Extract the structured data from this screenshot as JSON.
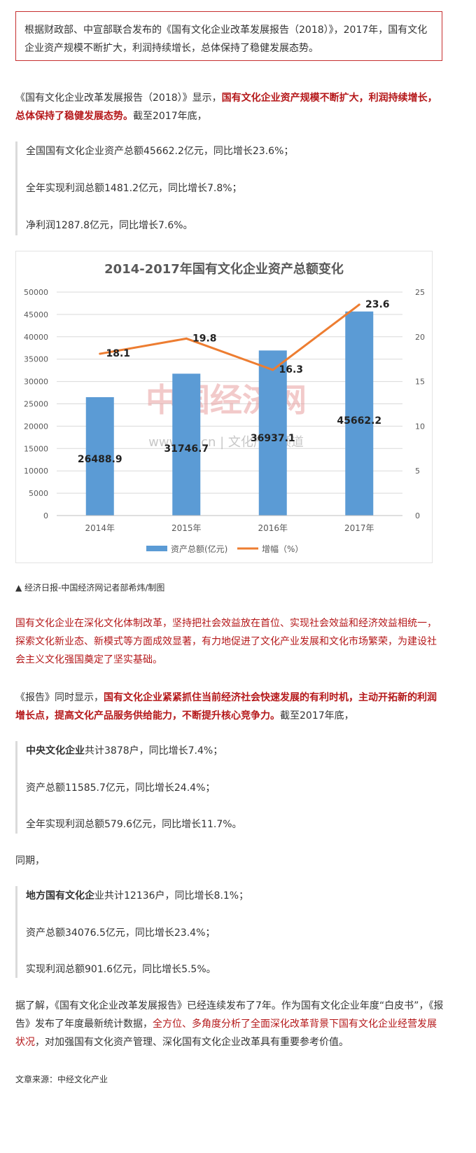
{
  "intro": {
    "text": "根据财政部、中宣部联合发布的《国有文化企业改革发展报告（2018）》，2017年，国有文化企业资产规模不断扩大，利润持续增长，总体保持了稳健发展态势。"
  },
  "p1": {
    "prefix": "《国有文化企业改革发展报告（2018）》显示，",
    "highlight": "国有文化企业资产规模不断扩大，利润持续增长，总体保持了稳健发展态势。",
    "suffix": "截至2017年底，"
  },
  "quote1": {
    "items": [
      "全国国有文化企业资产总额45662.2亿元，同比增长23.6%；",
      "全年实现利润总额1481.2亿元，同比增长7.8%；",
      "净利润1287.8亿元，同比增长7.6%。"
    ]
  },
  "chart_data": {
    "type": "bar",
    "title": "2014-2017年国有文化企业资产总额变化",
    "categories": [
      "2014年",
      "2015年",
      "2016年",
      "2017年"
    ],
    "series": [
      {
        "name": "资产总额(亿元)",
        "kind": "bar",
        "axis": "left",
        "values": [
          26488.9,
          31746.7,
          36937.1,
          45662.2
        ],
        "color": "#5b9bd5"
      },
      {
        "name": "增幅（%）",
        "kind": "line",
        "axis": "right",
        "values": [
          18.1,
          19.8,
          16.3,
          23.6
        ],
        "color": "#ed7d31"
      }
    ],
    "bar_labels": [
      "26488.9",
      "31746.7",
      "36937.1",
      "45662.2"
    ],
    "line_labels": [
      "18.1",
      "19.8",
      "16.3",
      "23.6"
    ],
    "ylim_left": [
      0,
      50000
    ],
    "yticks_left": [
      "50000",
      "45000",
      "40000",
      "35000",
      "30000",
      "25000",
      "20000",
      "15000",
      "10000",
      "5000",
      "0"
    ],
    "ylim_right": [
      0,
      25
    ],
    "yticks_right": [
      "25",
      "20",
      "15",
      "10",
      "5",
      "0"
    ],
    "grid": true,
    "legend_position": "bottom",
    "watermark": {
      "logo": "中国经济网",
      "sub": "www.ce.cn | 文化产业频道"
    }
  },
  "caption": "▲ 经济日报-中国经济网记者部希炜/制图",
  "p2": {
    "text": "国有文化企业在深化文化体制改革，坚持把社会效益放在首位、实现社会效益和经济效益相统一，探索文化新业态、新模式等方面成效显著，有力地促进了文化产业发展和文化市场繁荣，为建设社会主义文化强国奠定了坚实基础。"
  },
  "p3": {
    "prefix": "《报告》同时显示，",
    "highlight": "国有文化企业紧紧抓住当前经济社会快速发展的有利时机，主动开拓新的利润增长点，提高文化产品服务供给能力，不断提升核心竞争力。",
    "suffix": "截至2017年底，"
  },
  "quote2": {
    "bold": "中央文化企业",
    "first_rest": "共计3878户，同比增长7.4%；",
    "items": [
      "资产总额11585.7亿元，同比增长24.4%；",
      "全年实现利润总额579.6亿元，同比增长11.7%。"
    ]
  },
  "same_period": "同期，",
  "quote3": {
    "bold": "地方国有文化企",
    "first_rest": "业共计12136户，同比增长8.1%；",
    "items": [
      "资产总额34076.5亿元，同比增长23.4%；",
      "实现利润总额901.6亿元，同比增长5.5%。"
    ]
  },
  "p4": {
    "prefix": "据了解，《国有文化企业改革发展报告》已经连续发布了7年。作为国有文化企业年度“白皮书”，《报告》发布了年度最新统计数据，",
    "highlight": "全方位、多角度分析了全面深化改革背景下国有文化企业经营发展状况",
    "suffix": "，对加强国有文化资产管理、深化国有文化企业改革具有重要参考价值。"
  },
  "source": "文章来源：中经文化产业"
}
